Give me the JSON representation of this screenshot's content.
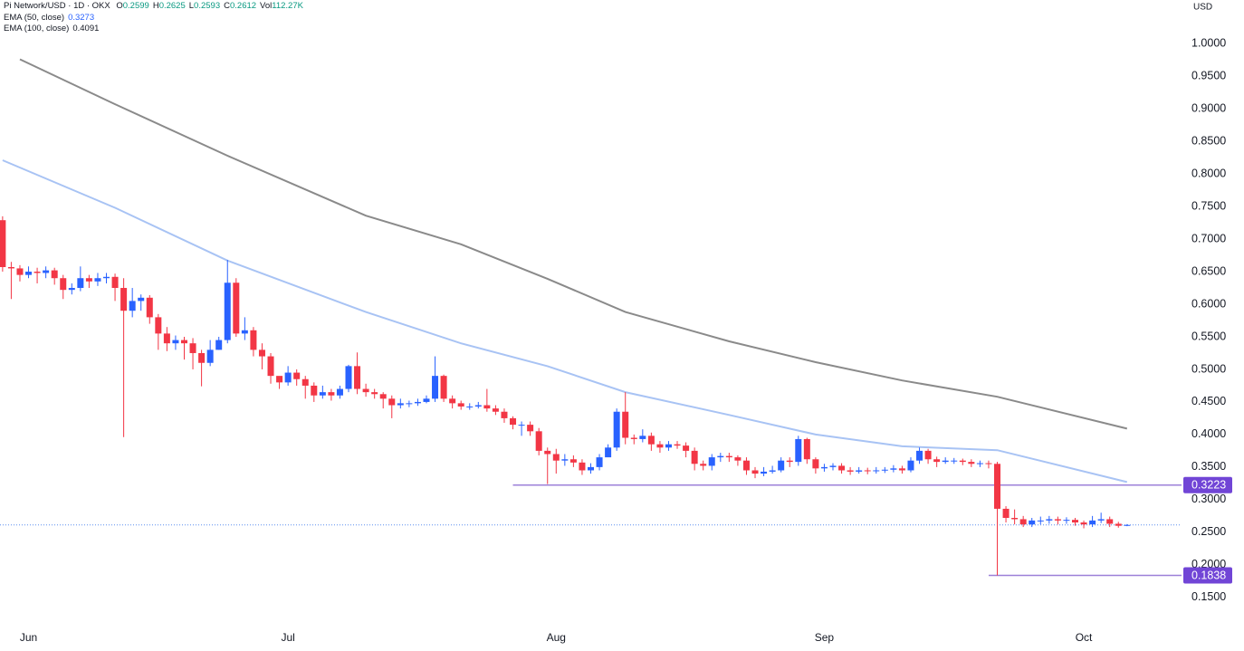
{
  "chart_data": {
    "type": "candlestick",
    "header": {
      "symbol": "Pi Network/USD · 1D · OKX",
      "ohlc": [
        {
          "label": "O",
          "value": 0.2599
        },
        {
          "label": "H",
          "value": 0.2625
        },
        {
          "label": "L",
          "value": 0.2593
        },
        {
          "label": "C",
          "value": 0.2612
        }
      ],
      "volume": {
        "label": "Vol",
        "value": "112.27K"
      },
      "value_color": "#089981"
    },
    "currency": "USD",
    "categories": [
      null,
      null,
      null,
      "Jun",
      null,
      null,
      null,
      null,
      null,
      null,
      null,
      null,
      null,
      null,
      null,
      null,
      null,
      null,
      null,
      null,
      null,
      null,
      null,
      null,
      null,
      null,
      null,
      null,
      null,
      null,
      null,
      null,
      null,
      "Jul",
      null,
      null,
      null,
      null,
      null,
      null,
      null,
      null,
      null,
      null,
      null,
      null,
      null,
      null,
      null,
      null,
      null,
      null,
      null,
      null,
      null,
      null,
      null,
      null,
      null,
      null,
      null,
      null,
      null,
      null,
      "Aug",
      null,
      null,
      null,
      null,
      null,
      null,
      null,
      null,
      null,
      null,
      null,
      null,
      null,
      null,
      null,
      null,
      null,
      null,
      null,
      null,
      null,
      null,
      null,
      null,
      null,
      null,
      null,
      null,
      null,
      null,
      "Sep",
      null,
      null,
      null,
      null,
      null,
      null,
      null,
      null,
      null,
      null,
      null,
      null,
      null,
      null,
      null,
      null,
      null,
      null,
      null,
      null,
      null,
      null,
      null,
      null,
      null,
      null,
      null,
      null,
      null,
      "Oct",
      null,
      null,
      null,
      null,
      null
    ],
    "open": [
      0.729,
      0.657,
      0.655,
      0.645,
      0.65,
      0.648,
      0.652,
      0.64,
      0.622,
      0.625,
      0.64,
      0.635,
      0.64,
      0.642,
      0.625,
      0.59,
      0.605,
      0.61,
      0.58,
      0.555,
      0.54,
      0.545,
      0.54,
      0.525,
      0.51,
      0.53,
      0.545,
      0.633,
      0.555,
      0.56,
      0.53,
      0.52,
      0.49,
      0.48,
      0.495,
      0.485,
      0.475,
      0.46,
      0.465,
      0.46,
      0.47,
      0.505,
      0.47,
      0.465,
      0.462,
      0.455,
      0.445,
      0.448,
      0.448,
      0.45,
      0.455,
      0.49,
      0.455,
      0.448,
      0.443,
      0.443,
      0.445,
      0.44,
      0.435,
      0.425,
      0.415,
      0.415,
      0.405,
      0.375,
      0.37,
      0.36,
      0.362,
      0.357,
      0.345,
      0.35,
      0.365,
      0.38,
      0.435,
      0.395,
      0.393,
      0.398,
      0.385,
      0.38,
      0.385,
      0.383,
      0.375,
      0.355,
      0.352,
      0.365,
      0.367,
      0.365,
      0.36,
      0.345,
      0.34,
      0.343,
      0.345,
      0.36,
      0.358,
      0.393,
      0.362,
      0.348,
      0.35,
      0.352,
      0.345,
      0.343,
      0.345,
      0.344,
      0.345,
      0.346,
      0.348,
      0.345,
      0.36,
      0.375,
      0.362,
      0.358,
      0.36,
      0.36,
      0.358,
      0.355,
      0.356,
      0.355,
      0.286,
      0.272,
      0.27,
      0.262,
      0.268,
      0.268,
      0.27,
      0.268,
      0.269,
      0.265,
      0.262,
      0.268,
      0.27,
      0.263,
      0.2599
    ],
    "high": [
      0.735,
      0.665,
      0.66,
      0.658,
      0.656,
      0.658,
      0.656,
      0.645,
      0.632,
      0.658,
      0.645,
      0.648,
      0.648,
      0.647,
      0.64,
      0.625,
      0.615,
      0.614,
      0.585,
      0.565,
      0.552,
      0.55,
      0.548,
      0.53,
      0.545,
      0.55,
      0.668,
      0.64,
      0.58,
      0.565,
      0.54,
      0.525,
      0.488,
      0.505,
      0.5,
      0.49,
      0.48,
      0.475,
      0.47,
      0.475,
      0.507,
      0.526,
      0.478,
      0.47,
      0.465,
      0.46,
      0.455,
      0.452,
      0.455,
      0.46,
      0.52,
      0.492,
      0.46,
      0.452,
      0.448,
      0.45,
      0.47,
      0.445,
      0.44,
      0.428,
      0.42,
      0.42,
      0.41,
      0.38,
      0.378,
      0.37,
      0.368,
      0.362,
      0.356,
      0.37,
      0.385,
      0.44,
      0.465,
      0.4,
      0.408,
      0.403,
      0.39,
      0.39,
      0.39,
      0.388,
      0.38,
      0.36,
      0.37,
      0.372,
      0.372,
      0.368,
      0.365,
      0.35,
      0.35,
      0.352,
      0.365,
      0.365,
      0.398,
      0.395,
      0.365,
      0.355,
      0.356,
      0.356,
      0.35,
      0.35,
      0.349,
      0.35,
      0.35,
      0.353,
      0.352,
      0.365,
      0.38,
      0.378,
      0.366,
      0.365,
      0.364,
      0.363,
      0.362,
      0.36,
      0.36,
      0.358,
      0.29,
      0.285,
      0.275,
      0.272,
      0.274,
      0.275,
      0.274,
      0.273,
      0.272,
      0.268,
      0.275,
      0.28,
      0.274,
      0.266,
      0.2625
    ],
    "low": [
      0.65,
      0.608,
      0.635,
      0.64,
      0.632,
      0.64,
      0.63,
      0.608,
      0.615,
      0.62,
      0.625,
      0.628,
      0.632,
      0.605,
      0.396,
      0.58,
      0.59,
      0.57,
      0.53,
      0.528,
      0.53,
      0.515,
      0.5,
      0.474,
      0.505,
      0.53,
      0.54,
      0.55,
      0.545,
      0.52,
      0.5,
      0.478,
      0.47,
      0.475,
      0.475,
      0.455,
      0.45,
      0.455,
      0.452,
      0.455,
      0.465,
      0.462,
      0.458,
      0.455,
      0.44,
      0.425,
      0.44,
      0.442,
      0.444,
      0.448,
      0.45,
      0.45,
      0.44,
      0.438,
      0.438,
      0.44,
      0.435,
      0.43,
      0.418,
      0.408,
      0.398,
      0.398,
      0.368,
      0.324,
      0.34,
      0.352,
      0.35,
      0.338,
      0.34,
      0.345,
      0.37,
      0.375,
      0.385,
      0.385,
      0.388,
      0.375,
      0.372,
      0.375,
      0.378,
      0.365,
      0.345,
      0.345,
      0.345,
      0.358,
      0.358,
      0.352,
      0.338,
      0.333,
      0.336,
      0.34,
      0.342,
      0.35,
      0.352,
      0.355,
      0.34,
      0.343,
      0.345,
      0.34,
      0.338,
      0.34,
      0.339,
      0.34,
      0.341,
      0.342,
      0.34,
      0.342,
      0.355,
      0.355,
      0.35,
      0.355,
      0.355,
      0.353,
      0.35,
      0.35,
      0.348,
      0.1838,
      0.265,
      0.262,
      0.258,
      0.258,
      0.262,
      0.263,
      0.262,
      0.263,
      0.26,
      0.256,
      0.258,
      0.264,
      0.258,
      0.257,
      0.2593
    ],
    "close": [
      0.657,
      0.655,
      0.645,
      0.65,
      0.648,
      0.652,
      0.64,
      0.622,
      0.625,
      0.64,
      0.635,
      0.64,
      0.642,
      0.625,
      0.59,
      0.605,
      0.61,
      0.58,
      0.555,
      0.54,
      0.545,
      0.54,
      0.525,
      0.51,
      0.53,
      0.545,
      0.633,
      0.555,
      0.56,
      0.53,
      0.52,
      0.49,
      0.48,
      0.495,
      0.485,
      0.475,
      0.46,
      0.465,
      0.46,
      0.47,
      0.505,
      0.47,
      0.465,
      0.462,
      0.455,
      0.445,
      0.448,
      0.448,
      0.45,
      0.455,
      0.49,
      0.455,
      0.448,
      0.443,
      0.443,
      0.445,
      0.44,
      0.435,
      0.425,
      0.415,
      0.415,
      0.405,
      0.375,
      0.37,
      0.36,
      0.362,
      0.357,
      0.345,
      0.35,
      0.365,
      0.38,
      0.435,
      0.395,
      0.393,
      0.398,
      0.385,
      0.38,
      0.385,
      0.383,
      0.375,
      0.355,
      0.352,
      0.365,
      0.367,
      0.365,
      0.36,
      0.345,
      0.34,
      0.343,
      0.345,
      0.36,
      0.358,
      0.393,
      0.362,
      0.348,
      0.35,
      0.352,
      0.345,
      0.343,
      0.345,
      0.344,
      0.345,
      0.346,
      0.348,
      0.345,
      0.36,
      0.375,
      0.362,
      0.358,
      0.36,
      0.36,
      0.358,
      0.355,
      0.356,
      0.355,
      0.286,
      0.272,
      0.27,
      0.262,
      0.268,
      0.268,
      0.27,
      0.268,
      0.269,
      0.265,
      0.262,
      0.268,
      0.27,
      0.263,
      0.2599,
      0.2612
    ],
    "up_color": "#2962ff",
    "down_color": "#f23645",
    "overlays": [
      {
        "name": "EMA (50, close)",
        "value": 0.3273,
        "color": "#a8c3f4",
        "x": [
          0,
          13,
          26,
          42,
          53,
          63,
          72,
          84,
          94,
          104,
          115,
          130
        ],
        "values": [
          0.821,
          0.748,
          0.667,
          0.588,
          0.54,
          0.505,
          0.465,
          0.43,
          0.4,
          0.382,
          0.376,
          0.327
        ]
      },
      {
        "name": "EMA (100, close)",
        "value": 0.4091,
        "color": "#8a8a8a",
        "x": [
          2,
          13,
          26,
          42,
          53,
          63,
          72,
          84,
          94,
          104,
          115,
          130
        ],
        "values": [
          0.976,
          0.907,
          0.828,
          0.736,
          0.692,
          0.639,
          0.588,
          0.543,
          0.511,
          0.483,
          0.458,
          0.409
        ]
      }
    ],
    "levels": [
      {
        "value": 0.3223,
        "start": 59,
        "color": "#9c80d8",
        "tag_color": "#7145d6"
      },
      {
        "value": 0.1838,
        "start": 114,
        "color": "#9c80d8",
        "tag_color": "#7145d6"
      }
    ],
    "last_price_line": true,
    "last_price_color": "#5b8def",
    "xlim": [
      -0.3,
      136.3
    ],
    "ylim": [
      0.108,
      1.067
    ],
    "yticks": [
      {
        "value": 0.15,
        "label": "0.1500"
      },
      {
        "value": 0.2,
        "label": "0.2000"
      },
      {
        "value": 0.25,
        "label": "0.2500"
      },
      {
        "value": 0.3,
        "label": "0.3000"
      },
      {
        "value": 0.35,
        "label": "0.3500"
      },
      {
        "value": 0.4,
        "label": "0.4000"
      },
      {
        "value": 0.45,
        "label": "0.4500"
      },
      {
        "value": 0.5,
        "label": "0.5000"
      },
      {
        "value": 0.55,
        "label": "0.5500"
      },
      {
        "value": 0.6,
        "label": "0.6000"
      },
      {
        "value": 0.65,
        "label": "0.6500"
      },
      {
        "value": 0.7,
        "label": "0.7000"
      },
      {
        "value": 0.75,
        "label": "0.7500"
      },
      {
        "value": 0.8,
        "label": "0.8000"
      },
      {
        "value": 0.85,
        "label": "0.8500"
      },
      {
        "value": 0.9,
        "label": "0.9000"
      },
      {
        "value": 0.95,
        "label": "0.9500"
      },
      {
        "value": 1.0,
        "label": "1.0000"
      }
    ],
    "grid": false
  }
}
